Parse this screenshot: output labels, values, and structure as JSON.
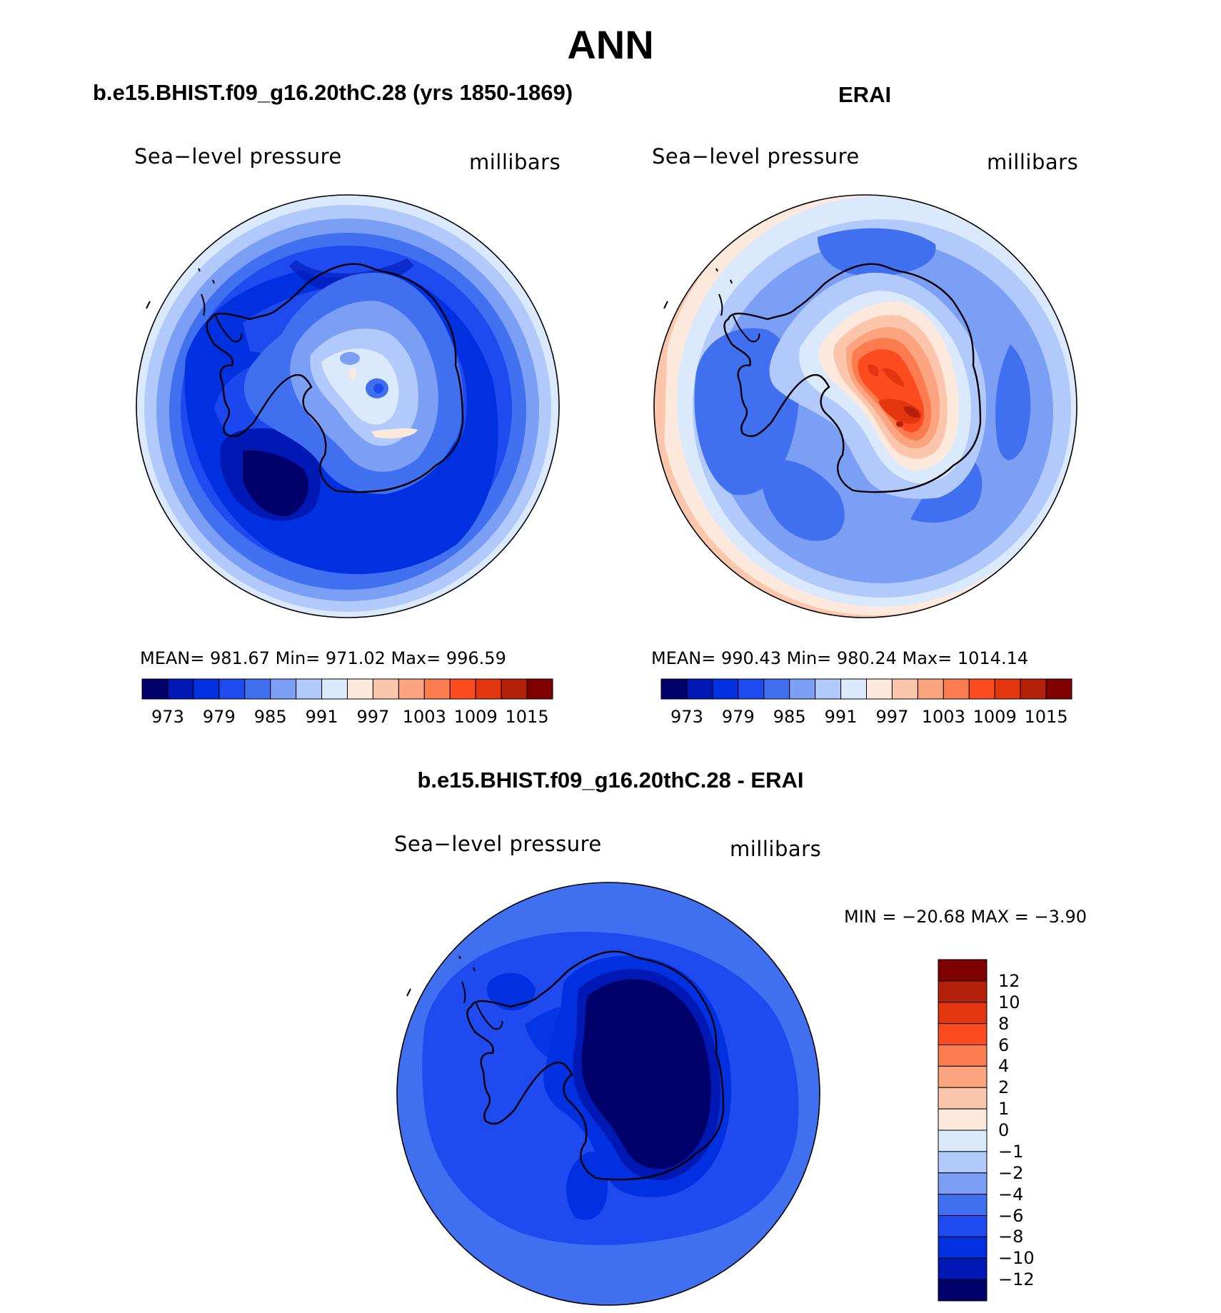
{
  "main_title": "ANN",
  "palettes": {
    "absolute": [
      "#00006b",
      "#0018b4",
      "#0030e0",
      "#1f4af0",
      "#4070f0",
      "#7c9ff6",
      "#b2c9fb",
      "#dbe9fc",
      "#fde9dc",
      "#fcc6ad",
      "#fba47f",
      "#fb7c4e",
      "#fc4b1f",
      "#e33510",
      "#b5200a",
      "#7f0000"
    ],
    "difference": [
      "#7f0000",
      "#b5200a",
      "#e33510",
      "#fc4b1f",
      "#fb7c4e",
      "#fba47f",
      "#fcc6ad",
      "#fde9dc",
      "#dbe9fc",
      "#b2c9fb",
      "#7c9ff6",
      "#4070f0",
      "#1f4af0",
      "#0030e0",
      "#0018b4",
      "#00006b"
    ]
  },
  "panels": {
    "model": {
      "title": "b.e15.BHIST.f09_g16.20thC.28 (yrs 1850-1869)",
      "variable": "Sea−level pressure",
      "units": "millibars",
      "stats": "MEAN= 981.67   Min= 971.02   Max= 996.59",
      "colorbar_ticks": [
        "973",
        "979",
        "985",
        "991",
        "997",
        "1003",
        "1009",
        "1015"
      ]
    },
    "obs": {
      "title": "ERAI",
      "variable": "Sea−level pressure",
      "units": "millibars",
      "stats": "MEAN= 990.43   Min= 980.24   Max= 1014.14",
      "colorbar_ticks": [
        "973",
        "979",
        "985",
        "991",
        "997",
        "1003",
        "1009",
        "1015"
      ]
    },
    "diff": {
      "title": "b.e15.BHIST.f09_g16.20thC.28 - ERAI",
      "variable": "Sea−level pressure",
      "units": "millibars",
      "stats": "MIN = −20.68 MAX =   −3.90",
      "colorbar_ticks": [
        "12",
        "10",
        "8",
        "6",
        "4",
        "2",
        "1",
        "0",
        "−1",
        "−2",
        "−4",
        "−6",
        "−8",
        "−10",
        "−12"
      ]
    }
  }
}
